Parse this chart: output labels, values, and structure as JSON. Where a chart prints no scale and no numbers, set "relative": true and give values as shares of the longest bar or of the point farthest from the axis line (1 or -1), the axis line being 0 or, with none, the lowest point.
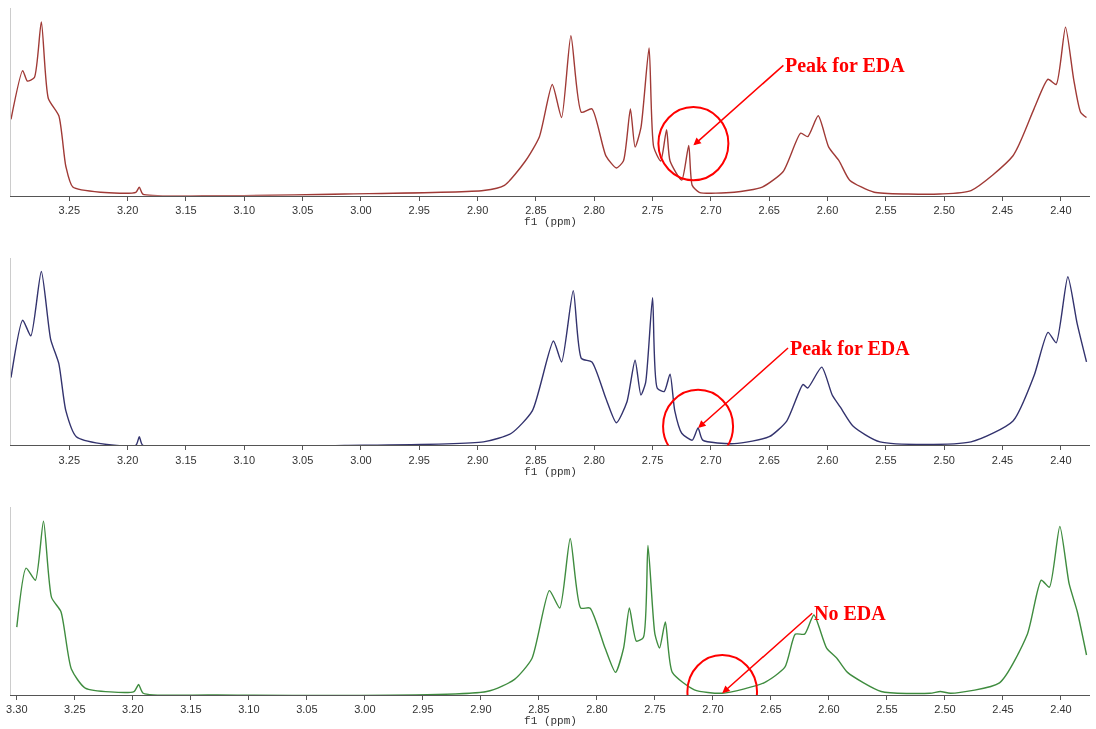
{
  "chart_data": [
    {
      "type": "line",
      "relative": true,
      "xlabel": "f1 (ppm)",
      "tick_labels": "x",
      "marker": "none",
      "line_style": "solid",
      "xlim": [
        3.3,
        2.375
      ],
      "xticks": [
        3.25,
        {
          "value": 3.2,
          "label": "3.20"
        },
        3.15,
        {
          "value": 3.1,
          "label": "3.10"
        },
        3.05,
        {
          "value": 3.0,
          "label": "3.00"
        },
        2.95,
        {
          "value": 2.9,
          "label": "2.90"
        },
        2.85,
        {
          "value": 2.8,
          "label": "2.80"
        },
        2.75,
        {
          "value": 2.7,
          "label": "2.70"
        },
        2.65,
        {
          "value": 2.6,
          "label": "2.60"
        },
        2.55,
        {
          "value": 2.5,
          "label": "2.50"
        },
        2.45,
        {
          "value": 2.4,
          "label": "2.40"
        }
      ],
      "annotations": [
        {
          "text": "Peak for EDA",
          "x": 2.715,
          "y": 0.29
        }
      ],
      "series": [
        {
          "color": "#a03a36",
          "x": [
            3.3,
            3.29,
            3.286,
            3.28,
            3.274,
            3.268,
            3.259,
            3.253,
            3.247,
            3.223,
            3.193,
            3.19,
            3.187,
            3.134,
            3.014,
            2.895,
            2.877,
            2.859,
            2.847,
            2.836,
            2.828,
            2.82,
            2.811,
            2.802,
            2.79,
            2.781,
            2.775,
            2.769,
            2.765,
            2.76,
            2.753,
            2.749,
            2.743,
            2.738,
            2.735,
            2.725,
            2.719,
            2.716,
            2.71,
            2.68,
            2.656,
            2.638,
            2.623,
            2.617,
            2.608,
            2.599,
            2.59,
            2.581,
            2.56,
            2.531,
            2.504,
            2.477,
            2.441,
            2.423,
            2.411,
            2.404,
            2.396,
            2.389,
            2.383,
            2.378
          ],
          "values": [
            0.44,
            0.72,
            0.66,
            0.68,
            1.0,
            0.56,
            0.46,
            0.17,
            0.05,
            0.02,
            0.02,
            0.05,
            0.01,
            0,
            0.01,
            0.03,
            0.06,
            0.2,
            0.34,
            0.64,
            0.45,
            0.92,
            0.48,
            0.5,
            0.23,
            0.16,
            0.2,
            0.5,
            0.28,
            0.39,
            0.85,
            0.28,
            0.2,
            0.38,
            0.2,
            0.09,
            0.29,
            0.06,
            0.02,
            0.02,
            0.05,
            0.14,
            0.36,
            0.34,
            0.46,
            0.28,
            0.2,
            0.09,
            0.02,
            0.01,
            0.01,
            0.03,
            0.23,
            0.5,
            0.67,
            0.64,
            0.97,
            0.67,
            0.48,
            0.45
          ]
        }
      ]
    },
    {
      "type": "line",
      "relative": true,
      "xlabel": "f1 (ppm)",
      "tick_labels": "x",
      "marker": "none",
      "line_style": "solid",
      "xlim": [
        3.3,
        2.375
      ],
      "xticks": [
        3.25,
        {
          "value": 3.2,
          "label": "3.20"
        },
        3.15,
        {
          "value": 3.1,
          "label": "3.10"
        },
        3.05,
        {
          "value": 3.0,
          "label": "3.00"
        },
        2.95,
        {
          "value": 2.9,
          "label": "2.90"
        },
        2.85,
        {
          "value": 2.8,
          "label": "2.80"
        },
        2.75,
        {
          "value": 2.7,
          "label": "2.70"
        },
        2.65,
        {
          "value": 2.6,
          "label": "2.60"
        },
        2.55,
        {
          "value": 2.5,
          "label": "2.50"
        },
        2.45,
        {
          "value": 2.4,
          "label": "2.40"
        }
      ],
      "annotations": [
        {
          "text": "Peak for EDA",
          "x": 2.711,
          "y": 0.1
        }
      ],
      "series": [
        {
          "color": "#33336e",
          "x": [
            3.3,
            3.29,
            3.283,
            3.274,
            3.266,
            3.259,
            3.253,
            3.244,
            3.223,
            3.193,
            3.19,
            3.187,
            3.014,
            2.895,
            2.871,
            2.853,
            2.835,
            2.828,
            2.818,
            2.811,
            2.802,
            2.79,
            2.781,
            2.772,
            2.765,
            2.76,
            2.756,
            2.75,
            2.746,
            2.74,
            2.735,
            2.731,
            2.725,
            2.716,
            2.711,
            2.707,
            2.68,
            2.65,
            2.635,
            2.621,
            2.617,
            2.605,
            2.596,
            2.589,
            2.578,
            2.555,
            2.477,
            2.441,
            2.423,
            2.411,
            2.404,
            2.394,
            2.386,
            2.378
          ],
          "values": [
            0.39,
            0.72,
            0.63,
            1.0,
            0.61,
            0.47,
            0.2,
            0.05,
            0.01,
            0,
            0.05,
            0,
            0,
            0.02,
            0.07,
            0.2,
            0.6,
            0.48,
            0.89,
            0.5,
            0.48,
            0.27,
            0.13,
            0.25,
            0.49,
            0.29,
            0.36,
            0.85,
            0.33,
            0.31,
            0.41,
            0.2,
            0.07,
            0.03,
            0.1,
            0.03,
            0.01,
            0.05,
            0.14,
            0.35,
            0.33,
            0.45,
            0.29,
            0.22,
            0.11,
            0.02,
            0.02,
            0.14,
            0.4,
            0.65,
            0.59,
            0.97,
            0.7,
            0.48
          ]
        }
      ]
    },
    {
      "type": "line",
      "relative": true,
      "xlabel": "f1 (ppm)",
      "marker": "none",
      "line_style": "solid",
      "tick_labels": "x",
      "xlim": [
        3.305,
        2.375
      ],
      "xticks": [
        {
          "value": 3.3,
          "label": "3.30"
        },
        3.25,
        {
          "value": 3.2,
          "label": "3.20"
        },
        3.15,
        {
          "value": 3.1,
          "label": "3.10"
        },
        3.05,
        {
          "value": 3.0,
          "label": "3.00"
        },
        2.95,
        {
          "value": 2.9,
          "label": "2.90"
        },
        2.85,
        {
          "value": 2.8,
          "label": "2.80"
        },
        2.75,
        {
          "value": 2.7,
          "label": "2.70"
        },
        2.65,
        {
          "value": 2.6,
          "label": "2.60"
        },
        2.55,
        {
          "value": 2.5,
          "label": "2.50"
        },
        2.45,
        {
          "value": 2.4,
          "label": "2.40"
        }
      ],
      "annotations": [
        {
          "text": "No EDA",
          "x": 2.692,
          "y": 0.01
        }
      ],
      "series": [
        {
          "color": "#3f8c3f",
          "x": [
            3.3,
            3.292,
            3.284,
            3.277,
            3.27,
            3.262,
            3.253,
            3.241,
            3.199,
            3.195,
            3.191,
            3.134,
            2.895,
            2.871,
            2.856,
            2.841,
            2.832,
            2.823,
            2.814,
            2.806,
            2.793,
            2.784,
            2.777,
            2.772,
            2.766,
            2.76,
            2.756,
            2.75,
            2.746,
            2.741,
            2.735,
            2.716,
            2.692,
            2.656,
            2.638,
            2.629,
            2.621,
            2.613,
            2.602,
            2.593,
            2.584,
            2.555,
            2.513,
            2.504,
            2.495,
            2.453,
            2.429,
            2.417,
            2.41,
            2.401,
            2.393,
            2.386,
            2.378
          ],
          "values": [
            0.39,
            0.73,
            0.66,
            1.0,
            0.56,
            0.48,
            0.15,
            0.04,
            0.02,
            0.06,
            0.01,
            0,
            0.02,
            0.09,
            0.21,
            0.6,
            0.5,
            0.9,
            0.5,
            0.5,
            0.27,
            0.13,
            0.27,
            0.5,
            0.31,
            0.33,
            0.86,
            0.35,
            0.27,
            0.42,
            0.13,
            0.03,
            0.01,
            0.07,
            0.16,
            0.35,
            0.35,
            0.46,
            0.27,
            0.21,
            0.13,
            0.02,
            0.01,
            0.02,
            0.01,
            0.07,
            0.35,
            0.66,
            0.62,
            0.97,
            0.64,
            0.48,
            0.23
          ]
        }
      ]
    }
  ]
}
